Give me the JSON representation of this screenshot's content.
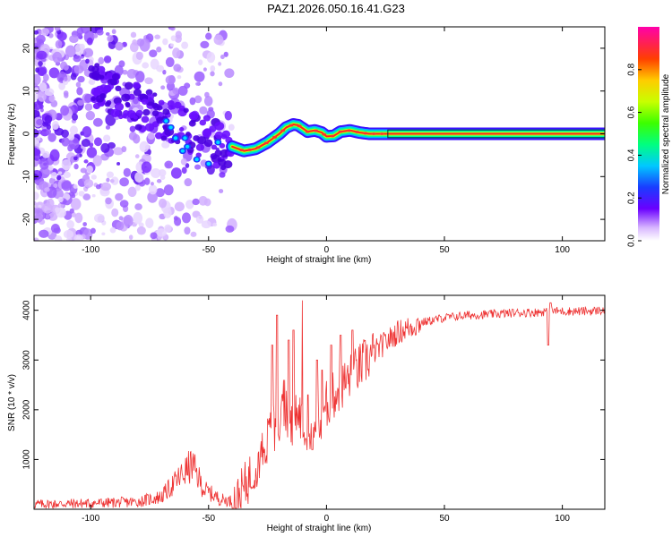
{
  "title": "PAZ1.2026.050.16.41.G23",
  "chart_data": [
    {
      "type": "heatmap",
      "xlabel": "Height of straight line (km)",
      "ylabel": "Frequency (Hz)",
      "xlim": [
        -124,
        118
      ],
      "ylim": [
        -25,
        25
      ],
      "xticks": [
        -100,
        -50,
        0,
        50,
        100
      ],
      "yticks": [
        -20,
        -10,
        0,
        10,
        20
      ],
      "colorbar": {
        "label": "Normalized spectral amplitude",
        "range": [
          0,
          1
        ],
        "ticks": [
          "0.0",
          "0.2",
          "0.4",
          "0.6",
          "0.8"
        ]
      },
      "ridge": {
        "x": [
          -40,
          -35,
          -30,
          -25,
          -20,
          -17,
          -14,
          -12,
          -8,
          -5,
          -2,
          0,
          3,
          6,
          10,
          14,
          18,
          22,
          26,
          118
        ],
        "y": [
          -3,
          -4,
          -3.5,
          -2,
          0,
          1.5,
          2.2,
          2,
          0.5,
          0.8,
          0.3,
          -0.6,
          -0.5,
          0.5,
          0.8,
          0.3,
          0,
          0,
          0,
          0
        ]
      }
    },
    {
      "type": "line",
      "xlabel": "Height of straight line (km)",
      "ylabel": "SNR (10 * v/v)",
      "xlim": [
        -124,
        118
      ],
      "ylim": [
        0,
        4300
      ],
      "xticks": [
        -100,
        -50,
        0,
        50,
        100
      ],
      "yticks": [
        1000,
        2000,
        3000,
        4000
      ],
      "color": "#ee3333",
      "envelope": {
        "x": [
          -124,
          -100,
          -80,
          -70,
          -62,
          -57,
          -52,
          -45,
          -38,
          -33,
          -28,
          -22,
          -15,
          -10,
          -5,
          0,
          5,
          10,
          15,
          20,
          25,
          30,
          35,
          40,
          50,
          60,
          70,
          80,
          90,
          95,
          100,
          110,
          118
        ],
        "y": [
          100,
          120,
          150,
          250,
          650,
          900,
          400,
          200,
          150,
          600,
          1100,
          1700,
          2000,
          1800,
          1900,
          2100,
          2400,
          2650,
          2900,
          3150,
          3350,
          3550,
          3650,
          3750,
          3850,
          3900,
          3920,
          3950,
          3960,
          3990,
          3980,
          3980,
          4000
        ]
      }
    }
  ]
}
